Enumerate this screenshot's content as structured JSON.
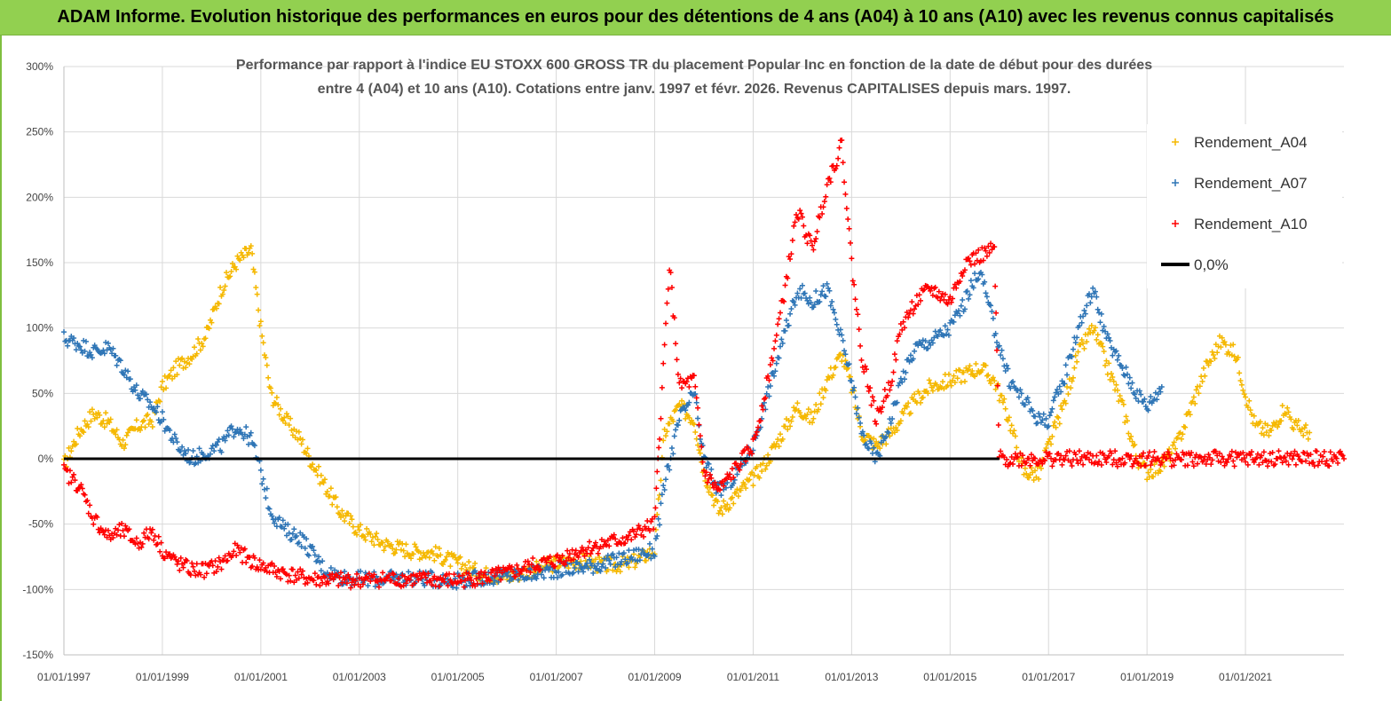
{
  "header": {
    "title": "ADAM Informe. Evolution historique des performances en euros pour des détentions de 4 ans (A04) à 10 ans (A10) avec les revenus connus capitalisés"
  },
  "chart_data": {
    "type": "scatter",
    "title_lines": [
      "Performance par rapport à l'indice EU STOXX 600 GROSS TR  du placement Popular Inc en fonction de la date de début pour des durées",
      "entre 4 (A04) et 10 ans (A10).  Cotations entre janv. 1997 et févr. 2026. Revenus CAPITALISES depuis mars. 1997."
    ],
    "x_ticks": [
      "01/01/1997",
      "01/01/1999",
      "01/01/2001",
      "01/01/2003",
      "01/01/2005",
      "01/01/2007",
      "01/01/2009",
      "01/01/2011",
      "01/01/2013",
      "01/01/2015",
      "01/01/2017",
      "01/01/2019",
      "01/01/2021"
    ],
    "x_tick_years": [
      1997,
      1999,
      2001,
      2003,
      2005,
      2007,
      2009,
      2011,
      2013,
      2015,
      2017,
      2019,
      2021
    ],
    "xlim": [
      1997,
      2023
    ],
    "ylim": [
      -150,
      300
    ],
    "y_ticks": [
      300,
      250,
      200,
      150,
      100,
      50,
      0,
      -50,
      -100,
      -150
    ],
    "y_tick_labels": [
      "300%",
      "250%",
      "200%",
      "150%",
      "100%",
      "50%",
      "0%",
      "-50%",
      "-100%",
      "-150%"
    ],
    "grid": "horizontal",
    "legend_position": "top-right",
    "series": [
      {
        "name": "Rendement_A04",
        "color": "#f5b800",
        "marker": "+",
        "points": [
          [
            1997.0,
            -5
          ],
          [
            1997.3,
            20
          ],
          [
            1997.6,
            35
          ],
          [
            1997.9,
            28
          ],
          [
            1998.2,
            12
          ],
          [
            1998.5,
            25
          ],
          [
            1998.8,
            30
          ],
          [
            1999.0,
            55
          ],
          [
            1999.3,
            70
          ],
          [
            1999.6,
            80
          ],
          [
            1999.9,
            95
          ],
          [
            2000.2,
            130
          ],
          [
            2000.5,
            150
          ],
          [
            2000.8,
            160
          ],
          [
            2001.0,
            100
          ],
          [
            2001.2,
            50
          ],
          [
            2001.5,
            30
          ],
          [
            2001.8,
            15
          ],
          [
            2002.0,
            0
          ],
          [
            2002.3,
            -20
          ],
          [
            2002.6,
            -40
          ],
          [
            2003.0,
            -55
          ],
          [
            2003.5,
            -65
          ],
          [
            2004.0,
            -70
          ],
          [
            2004.5,
            -72
          ],
          [
            2005.0,
            -80
          ],
          [
            2005.5,
            -88
          ],
          [
            2006.0,
            -90
          ],
          [
            2006.5,
            -85
          ],
          [
            2007.0,
            -80
          ],
          [
            2007.5,
            -78
          ],
          [
            2008.0,
            -82
          ],
          [
            2008.5,
            -80
          ],
          [
            2009.0,
            -70
          ],
          [
            2009.2,
            20
          ],
          [
            2009.5,
            40
          ],
          [
            2009.8,
            30
          ],
          [
            2010.0,
            -10
          ],
          [
            2010.3,
            -40
          ],
          [
            2010.6,
            -30
          ],
          [
            2011.0,
            -15
          ],
          [
            2011.3,
            0
          ],
          [
            2011.6,
            20
          ],
          [
            2011.9,
            40
          ],
          [
            2012.2,
            30
          ],
          [
            2012.5,
            60
          ],
          [
            2012.8,
            80
          ],
          [
            2013.0,
            55
          ],
          [
            2013.2,
            20
          ],
          [
            2013.5,
            10
          ],
          [
            2013.8,
            20
          ],
          [
            2014.0,
            30
          ],
          [
            2014.3,
            45
          ],
          [
            2014.6,
            55
          ],
          [
            2015.0,
            60
          ],
          [
            2015.3,
            65
          ],
          [
            2015.6,
            70
          ],
          [
            2015.9,
            60
          ],
          [
            2016.2,
            30
          ],
          [
            2016.5,
            -10
          ],
          [
            2016.8,
            -12
          ],
          [
            2017.0,
            10
          ],
          [
            2017.3,
            40
          ],
          [
            2017.6,
            80
          ],
          [
            2017.9,
            100
          ],
          [
            2018.2,
            70
          ],
          [
            2018.5,
            40
          ],
          [
            2018.8,
            0
          ],
          [
            2019.0,
            -10
          ],
          [
            2019.3,
            -5
          ],
          [
            2019.6,
            10
          ],
          [
            2019.9,
            40
          ],
          [
            2020.2,
            70
          ],
          [
            2020.5,
            90
          ],
          [
            2020.8,
            80
          ],
          [
            2021.0,
            50
          ],
          [
            2021.2,
            25
          ],
          [
            2021.5,
            20
          ],
          [
            2021.8,
            40
          ],
          [
            2022.0,
            25
          ],
          [
            2022.3,
            20
          ]
        ]
      },
      {
        "name": "Rendement_A07",
        "color": "#2e75b6",
        "marker": "+",
        "points": [
          [
            1997.0,
            92
          ],
          [
            1997.3,
            88
          ],
          [
            1997.6,
            82
          ],
          [
            1997.9,
            85
          ],
          [
            1998.2,
            70
          ],
          [
            1998.5,
            50
          ],
          [
            1998.8,
            40
          ],
          [
            1999.0,
            30
          ],
          [
            1999.3,
            10
          ],
          [
            1999.6,
            0
          ],
          [
            1999.9,
            5
          ],
          [
            2000.2,
            10
          ],
          [
            2000.5,
            25
          ],
          [
            2000.8,
            15
          ],
          [
            2001.0,
            -10
          ],
          [
            2001.2,
            -40
          ],
          [
            2001.5,
            -55
          ],
          [
            2001.8,
            -60
          ],
          [
            2002.0,
            -70
          ],
          [
            2002.3,
            -85
          ],
          [
            2002.6,
            -90
          ],
          [
            2003.0,
            -92
          ],
          [
            2003.5,
            -92
          ],
          [
            2004.0,
            -91
          ],
          [
            2004.5,
            -92
          ],
          [
            2005.0,
            -93
          ],
          [
            2005.5,
            -91
          ],
          [
            2006.0,
            -90
          ],
          [
            2006.5,
            -88
          ],
          [
            2007.0,
            -85
          ],
          [
            2007.5,
            -83
          ],
          [
            2008.0,
            -80
          ],
          [
            2008.5,
            -75
          ],
          [
            2009.0,
            -70
          ],
          [
            2009.2,
            -20
          ],
          [
            2009.5,
            30
          ],
          [
            2009.8,
            50
          ],
          [
            2010.0,
            0
          ],
          [
            2010.3,
            -25
          ],
          [
            2010.6,
            -15
          ],
          [
            2011.0,
            10
          ],
          [
            2011.3,
            50
          ],
          [
            2011.6,
            90
          ],
          [
            2011.9,
            130
          ],
          [
            2012.2,
            120
          ],
          [
            2012.5,
            130
          ],
          [
            2012.8,
            90
          ],
          [
            2013.0,
            60
          ],
          [
            2013.2,
            20
          ],
          [
            2013.5,
            0
          ],
          [
            2013.8,
            30
          ],
          [
            2014.0,
            60
          ],
          [
            2014.3,
            85
          ],
          [
            2014.6,
            90
          ],
          [
            2015.0,
            100
          ],
          [
            2015.3,
            120
          ],
          [
            2015.6,
            145
          ],
          [
            2015.9,
            100
          ],
          [
            2016.2,
            60
          ],
          [
            2016.5,
            45
          ],
          [
            2016.8,
            30
          ],
          [
            2017.0,
            30
          ],
          [
            2017.3,
            60
          ],
          [
            2017.6,
            100
          ],
          [
            2017.9,
            130
          ],
          [
            2018.2,
            90
          ],
          [
            2018.5,
            70
          ],
          [
            2018.8,
            50
          ],
          [
            2019.0,
            40
          ],
          [
            2019.3,
            55
          ]
        ]
      },
      {
        "name": "Rendement_A10",
        "color": "#ff0000",
        "marker": "+",
        "points": [
          [
            1997.0,
            -10
          ],
          [
            1997.3,
            -20
          ],
          [
            1997.6,
            -45
          ],
          [
            1997.9,
            -60
          ],
          [
            1998.2,
            -55
          ],
          [
            1998.5,
            -65
          ],
          [
            1998.8,
            -55
          ],
          [
            1999.0,
            -70
          ],
          [
            1999.3,
            -80
          ],
          [
            1999.6,
            -85
          ],
          [
            1999.9,
            -85
          ],
          [
            2000.2,
            -80
          ],
          [
            2000.5,
            -70
          ],
          [
            2000.8,
            -78
          ],
          [
            2001.0,
            -82
          ],
          [
            2001.5,
            -88
          ],
          [
            2002.0,
            -92
          ],
          [
            2002.5,
            -93
          ],
          [
            2003.0,
            -93
          ],
          [
            2003.5,
            -92
          ],
          [
            2004.0,
            -92
          ],
          [
            2004.5,
            -93
          ],
          [
            2005.0,
            -93
          ],
          [
            2005.5,
            -91
          ],
          [
            2006.0,
            -88
          ],
          [
            2006.5,
            -82
          ],
          [
            2007.0,
            -78
          ],
          [
            2007.5,
            -70
          ],
          [
            2008.0,
            -65
          ],
          [
            2008.5,
            -60
          ],
          [
            2009.0,
            -50
          ],
          [
            2009.1,
            20
          ],
          [
            2009.3,
            150
          ],
          [
            2009.5,
            55
          ],
          [
            2009.8,
            60
          ],
          [
            2010.0,
            -10
          ],
          [
            2010.3,
            -25
          ],
          [
            2010.6,
            -10
          ],
          [
            2011.0,
            10
          ],
          [
            2011.3,
            60
          ],
          [
            2011.6,
            120
          ],
          [
            2011.9,
            190
          ],
          [
            2012.2,
            160
          ],
          [
            2012.5,
            210
          ],
          [
            2012.8,
            240
          ],
          [
            2013.0,
            150
          ],
          [
            2013.2,
            80
          ],
          [
            2013.5,
            30
          ],
          [
            2013.8,
            60
          ],
          [
            2014.0,
            100
          ],
          [
            2014.3,
            120
          ],
          [
            2014.6,
            130
          ],
          [
            2015.0,
            120
          ],
          [
            2015.3,
            150
          ],
          [
            2015.6,
            155
          ],
          [
            2015.9,
            160
          ],
          [
            2016.0,
            0
          ],
          [
            2017.0,
            0
          ],
          [
            2018.0,
            0
          ],
          [
            2019.0,
            0
          ],
          [
            2020.0,
            0
          ],
          [
            2021.0,
            0
          ],
          [
            2022.0,
            0
          ],
          [
            2023.0,
            0
          ]
        ]
      },
      {
        "name": "0,0%",
        "color": "#000000",
        "marker": "line",
        "points": [
          [
            1997.0,
            0
          ],
          [
            2016.0,
            0
          ]
        ]
      }
    ]
  }
}
